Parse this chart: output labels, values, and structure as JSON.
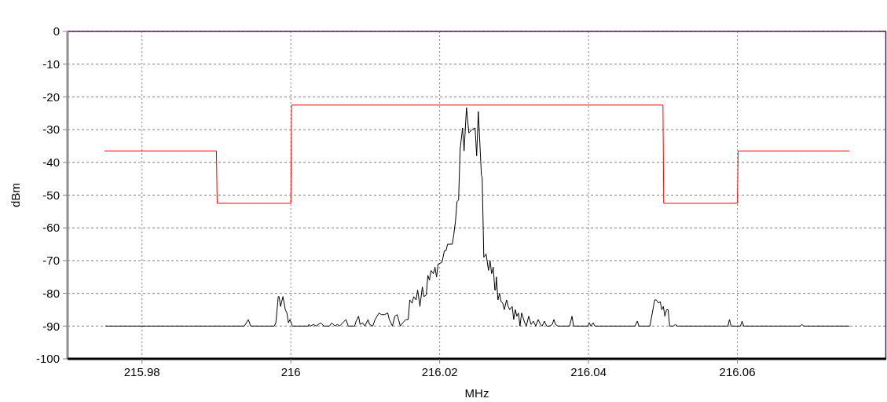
{
  "chart_data": {
    "type": "line",
    "xlabel": "MHz",
    "ylabel": "dBm",
    "xlim": [
      215.97,
      216.08
    ],
    "ylim": [
      -100,
      0
    ],
    "xticks": [
      215.98,
      216,
      216.02,
      216.04,
      216.06
    ],
    "yticks": [
      0,
      -10,
      -20,
      -30,
      -40,
      -50,
      -60,
      -70,
      -80,
      -90,
      -100
    ],
    "grid": true,
    "line_style": "solid",
    "marker": "none",
    "series": [
      {
        "color": "#ff0000",
        "x": [
          215.975,
          215.99,
          215.9901,
          216,
          216.0001,
          216.05,
          216.0501,
          216.06,
          216.0601,
          216.075
        ],
        "values": [
          -36.5,
          -36.5,
          -52.5,
          -52.5,
          -22.5,
          -22.5,
          -52.5,
          -52.5,
          -36.5,
          -36.5
        ]
      },
      {
        "color": "#000000",
        "x": [
          215.97513,
          215.99376,
          215.99429,
          215.9946,
          215.99778,
          215.99799,
          215.99831,
          215.99842,
          215.99862,
          215.99894,
          215.99926,
          215.99947,
          215.99968,
          215.99989,
          216.00021,
          216.00233,
          216.00243,
          216.00265,
          216.00307,
          216.00339,
          216.0037,
          216.00402,
          216.00444,
          216.00519,
          216.0055,
          216.00593,
          216.00624,
          216.00656,
          216.00741,
          216.00772,
          216.00857,
          216.00878,
          216.0091,
          216.00931,
          216.00963,
          216.00995,
          216.01037,
          216.01058,
          216.01101,
          216.01132,
          216.01185,
          216.01217,
          216.01259,
          216.01302,
          216.01323,
          216.01365,
          216.01397,
          216.01429,
          216.01471,
          216.01503,
          216.01545,
          216.01577,
          216.01598,
          216.0163,
          216.01651,
          216.01683,
          216.01704,
          216.01735,
          216.01767,
          216.01788,
          216.0182,
          216.01841,
          216.01862,
          216.01884,
          216.01915,
          216.01937,
          216.01958,
          216.01979,
          216.0199,
          216.02032,
          216.02063,
          216.02085,
          216.02106,
          216.02127,
          216.02169,
          216.0219,
          216.02212,
          216.02233,
          216.02254,
          216.02275,
          216.02307,
          216.02328,
          216.0236,
          216.02392,
          216.02434,
          216.02476,
          216.02497,
          216.02519,
          216.02561,
          216.02571,
          216.02593,
          216.02624,
          216.02656,
          216.02677,
          216.02698,
          216.0272,
          216.02741,
          216.02751,
          216.02762,
          216.02783,
          216.02804,
          216.02825,
          216.02847,
          216.02868,
          216.02899,
          216.02921,
          216.02942,
          216.02974,
          216.02995,
          216.03016,
          216.03037,
          216.03058,
          216.03079,
          216.03101,
          216.03122,
          216.03143,
          216.03164,
          216.03196,
          216.03228,
          216.03259,
          216.03291,
          216.03323,
          216.03354,
          216.03376,
          216.03407,
          216.03439,
          216.03481,
          216.03513,
          216.03534,
          216.03556,
          216.03587,
          216.03746,
          216.03778,
          216.03799,
          216.03841,
          216.03989,
          216.04011,
          216.04032,
          216.04063,
          216.04085,
          216.04624,
          216.04656,
          216.04677,
          216.04825,
          216.04857,
          216.04889,
          216.0491,
          216.04942,
          216.04963,
          216.04984,
          216.05005,
          216.05026,
          216.05048,
          216.05069,
          216.0509,
          216.05143,
          216.05164,
          216.05196,
          216.05873,
          216.05894,
          216.05915,
          216.06042,
          216.06063,
          216.06085,
          216.06847,
          216.06868,
          216.06889,
          216.07503
        ],
        "values": [
          -90,
          -90,
          -88,
          -90,
          -90,
          -89,
          -81,
          -81,
          -84,
          -81,
          -85,
          -86,
          -89,
          -88,
          -90,
          -90,
          -89.5,
          -90,
          -89.5,
          -90,
          -89.5,
          -89,
          -90,
          -90,
          -89,
          -90,
          -89.5,
          -90,
          -88,
          -90,
          -90,
          -88.5,
          -87,
          -89.5,
          -89,
          -90,
          -88,
          -89.5,
          -90,
          -88,
          -86,
          -86.5,
          -86.5,
          -86,
          -88,
          -90,
          -87,
          -86.5,
          -90,
          -89,
          -88,
          -88,
          -82,
          -83,
          -81,
          -82,
          -79,
          -84,
          -78,
          -81,
          -80.5,
          -74.5,
          -76,
          -73,
          -74,
          -72,
          -75,
          -71,
          -71,
          -70.5,
          -67,
          -67,
          -65,
          -65,
          -65,
          -62,
          -58,
          -52,
          -51.5,
          -36,
          -29.5,
          -36.5,
          -23.3,
          -31,
          -30,
          -29.5,
          -38,
          -24.5,
          -44,
          -44.5,
          -69,
          -68,
          -73,
          -70,
          -74,
          -72,
          -79,
          -79,
          -75,
          -82,
          -80,
          -82.5,
          -83,
          -85,
          -82,
          -84,
          -85,
          -84,
          -88,
          -85,
          -87,
          -86,
          -90,
          -86,
          -87.5,
          -89,
          -90,
          -87,
          -89.5,
          -88.5,
          -90,
          -88,
          -89.5,
          -90,
          -88.5,
          -90,
          -90,
          -89.5,
          -88,
          -89.5,
          -90,
          -90,
          -87,
          -90,
          -90,
          -90,
          -89,
          -90,
          -89,
          -90,
          -90,
          -88.5,
          -90,
          -90,
          -86,
          -82,
          -82,
          -83,
          -82.5,
          -85,
          -84,
          -87,
          -85,
          -85,
          -90,
          -90,
          -89.5,
          -90,
          -90,
          -88,
          -90,
          -90,
          -88.5,
          -90,
          -90,
          -89.5,
          -90,
          -90
        ]
      }
    ]
  }
}
